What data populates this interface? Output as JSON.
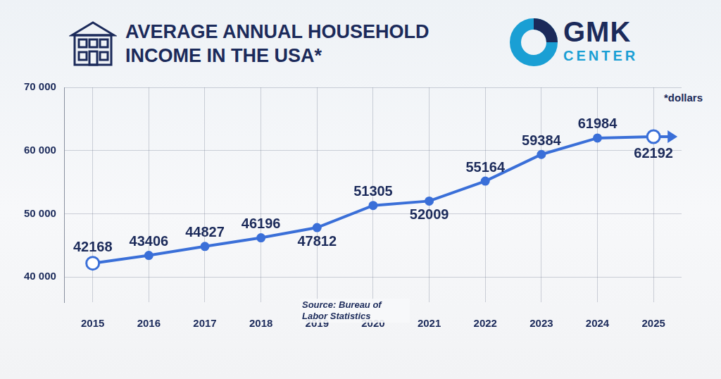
{
  "chart_data": {
    "type": "line",
    "title": "AVERAGE ANNUAL HOUSEHOLD INCOME IN THE USA*",
    "unit_note": "*dollars",
    "source": "Source: Bureau of Labor Statistics",
    "brand": "GMK CENTER",
    "categories": [
      "2015",
      "2016",
      "2017",
      "2018",
      "2019",
      "2020",
      "2021",
      "2022",
      "2023",
      "2024",
      "2025"
    ],
    "values": [
      42168,
      43406,
      44827,
      46196,
      47812,
      51305,
      52009,
      55164,
      59384,
      61984,
      62192
    ],
    "color": "#3a6fd8",
    "marker": "circle",
    "ylim": [
      36000,
      70000
    ],
    "yticks": [
      {
        "value": 40000,
        "label": "40 000"
      },
      {
        "value": 50000,
        "label": "50 000"
      },
      {
        "value": 60000,
        "label": "60 000"
      },
      {
        "value": 70000,
        "label": "70 000"
      }
    ],
    "grid": true,
    "data_labels": true
  }
}
